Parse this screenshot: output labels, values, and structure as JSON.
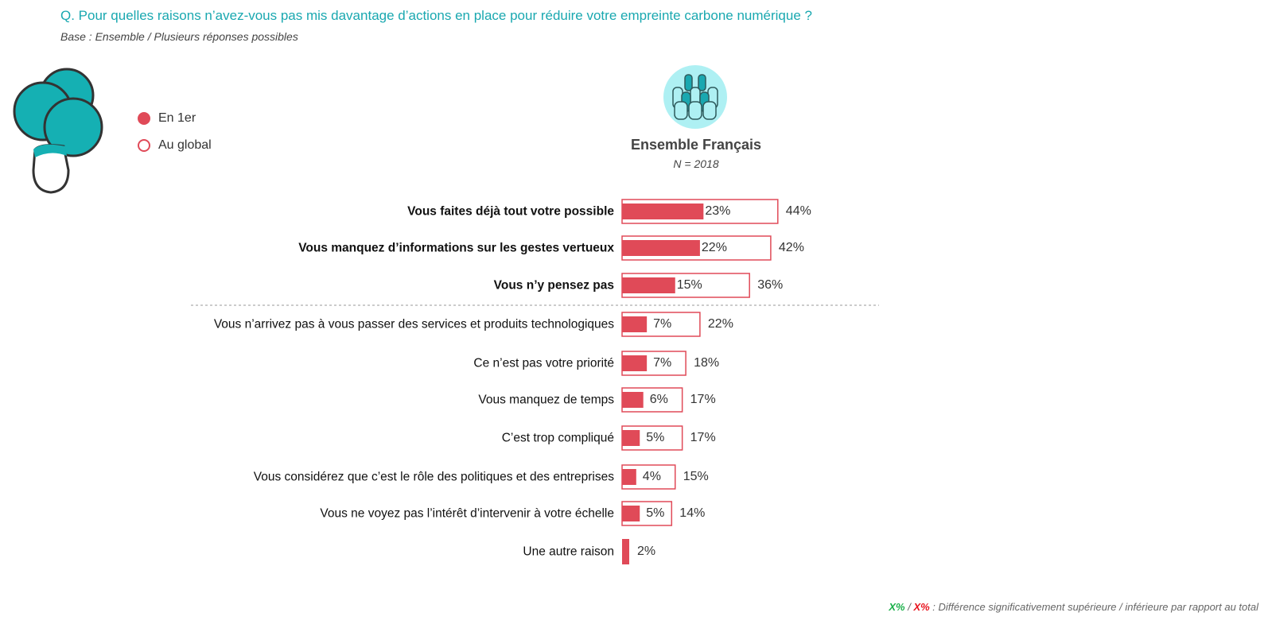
{
  "header": {
    "title": "Q. Pour quelles raisons n’avez-vous pas mis davantage d’actions en place pour réduire votre empreinte carbone numérique ?",
    "subtitle": "Base : Ensemble / Plusieurs réponses possibles"
  },
  "legend": [
    {
      "label": "En 1er",
      "style": "filled"
    },
    {
      "label": "Au global",
      "style": "outline"
    }
  ],
  "group": {
    "title": "Ensemble Français",
    "n": "N = 2018",
    "icon": "crowd-icon"
  },
  "colors": {
    "bar": "#e04a58",
    "title": "#1aa8b0",
    "higher": "#1bb04a",
    "lower": "#e8141e"
  },
  "chart_data": {
    "type": "bar",
    "orientation": "horizontal",
    "categories": [
      "Vous faites déjà tout votre possible",
      "Vous manquez d’informations sur les gestes vertueux",
      "Vous n’y pensez pas",
      "Vous n’arrivez pas à vous passer des services et produits technologiques",
      "Ce n’est pas votre priorité",
      "Vous manquez de temps",
      "C’est trop compliqué",
      "Vous considérez que c’est le rôle des politiques et des entreprises",
      "Vous ne voyez pas l’intérêt d’intervenir à votre échelle",
      "Une autre raison"
    ],
    "bold_count": 3,
    "series": [
      {
        "name": "En 1er",
        "values": [
          23,
          22,
          15,
          7,
          7,
          6,
          5,
          4,
          5,
          null
        ]
      },
      {
        "name": "Au global",
        "values": [
          44,
          42,
          36,
          22,
          18,
          17,
          17,
          15,
          14,
          2
        ]
      }
    ],
    "value_labels_first": [
      "23%",
      "22%",
      "15%",
      "7%",
      "7%",
      "6%",
      "5%",
      "4%",
      "5%",
      ""
    ],
    "value_labels_global": [
      "44%",
      "42%",
      "36%",
      "22%",
      "18%",
      "17%",
      "17%",
      "15%",
      "14%",
      "2%"
    ]
  },
  "footer": {
    "higher": "X%",
    "sep": " / ",
    "lower": "X%",
    "text": " : Différence significativement supérieure / inférieure par rapport au total"
  }
}
